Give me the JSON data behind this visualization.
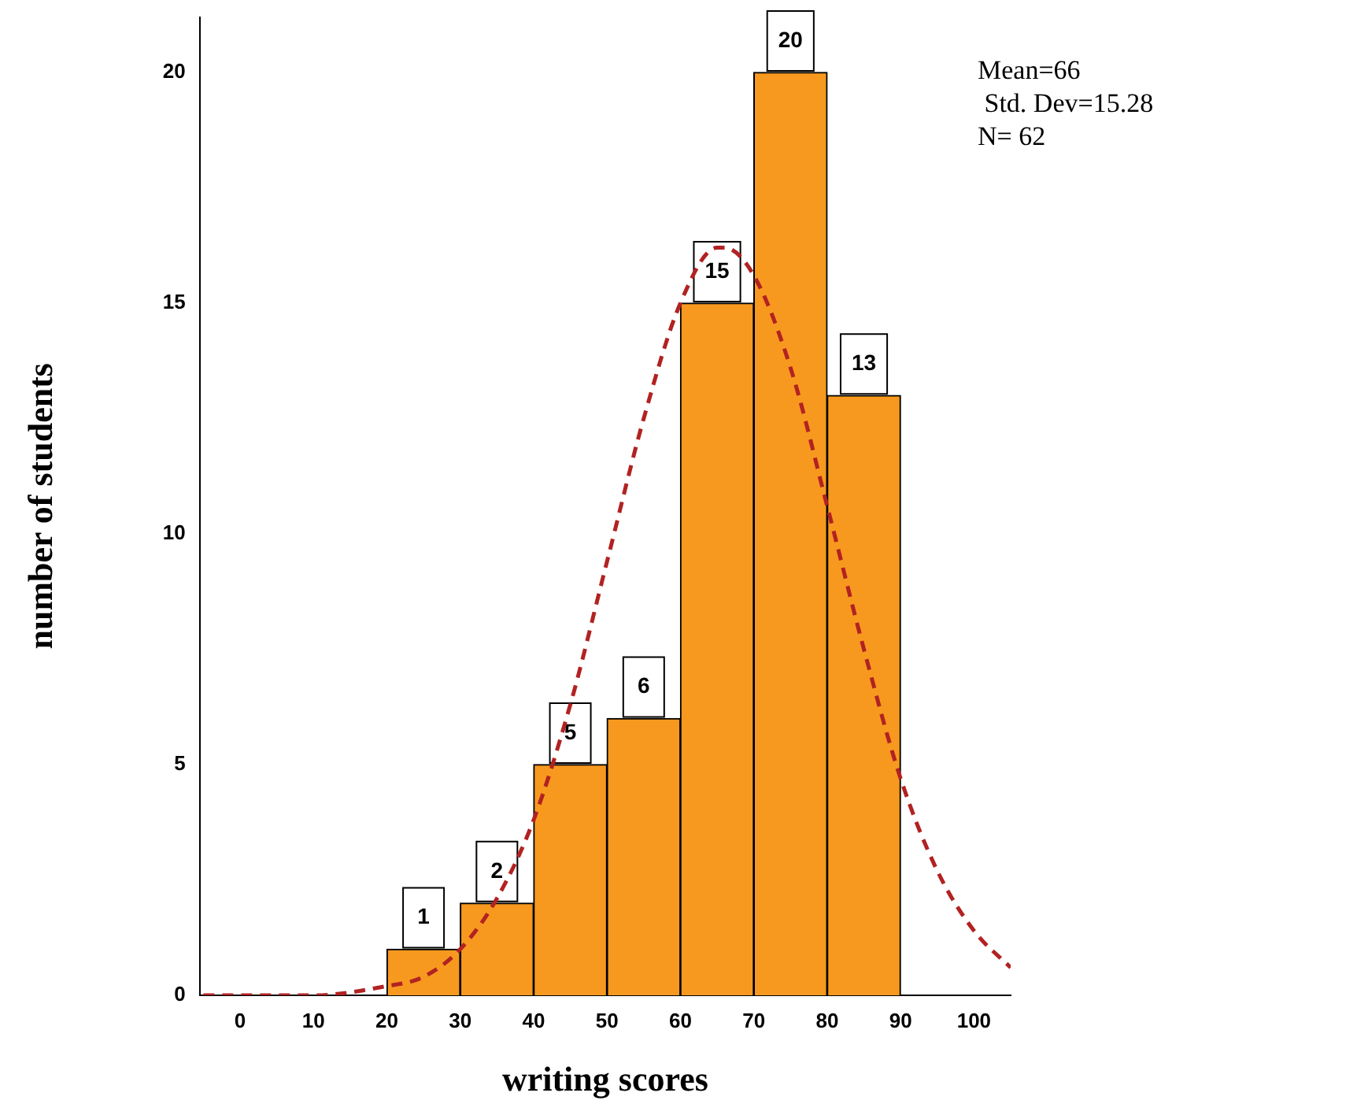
{
  "chart_data": {
    "type": "histogram",
    "xlabel": "writing scores",
    "ylabel": "number of students",
    "bins": [
      20,
      30,
      40,
      50,
      60,
      70,
      80,
      90
    ],
    "series": [
      {
        "color": "#f7991f",
        "values": [
          1,
          2,
          5,
          6,
          15,
          20,
          13
        ],
        "value_labels": [
          "1",
          "2",
          "5",
          "6",
          "15",
          "20",
          "13"
        ]
      },
      {
        "type": "line",
        "color": "#b22222",
        "line_style": "dashed",
        "x": [
          -5,
          0,
          10,
          20,
          25,
          30,
          35,
          40,
          45,
          50,
          55,
          60,
          65,
          66,
          70,
          75,
          80,
          85,
          90,
          95,
          100,
          105
        ],
        "values": [
          0,
          0,
          0,
          0.2,
          0.4,
          1,
          2.1,
          3.8,
          6.3,
          9.4,
          12.5,
          15,
          16.2,
          16.2,
          15.6,
          13.6,
          10.6,
          7.5,
          4.7,
          2.7,
          1.4,
          0.6
        ]
      }
    ],
    "xlim": [
      -5.5,
      105
    ],
    "xticks": [
      0,
      10,
      20,
      30,
      40,
      50,
      60,
      70,
      80,
      90,
      100
    ],
    "ylim": [
      0,
      21.2
    ],
    "yticks": [
      0,
      5,
      10,
      15,
      20
    ],
    "grid": false,
    "legend": false,
    "annotations": [
      "Mean=66",
      " Std. Dev=15.28",
      "N= 62"
    ]
  }
}
